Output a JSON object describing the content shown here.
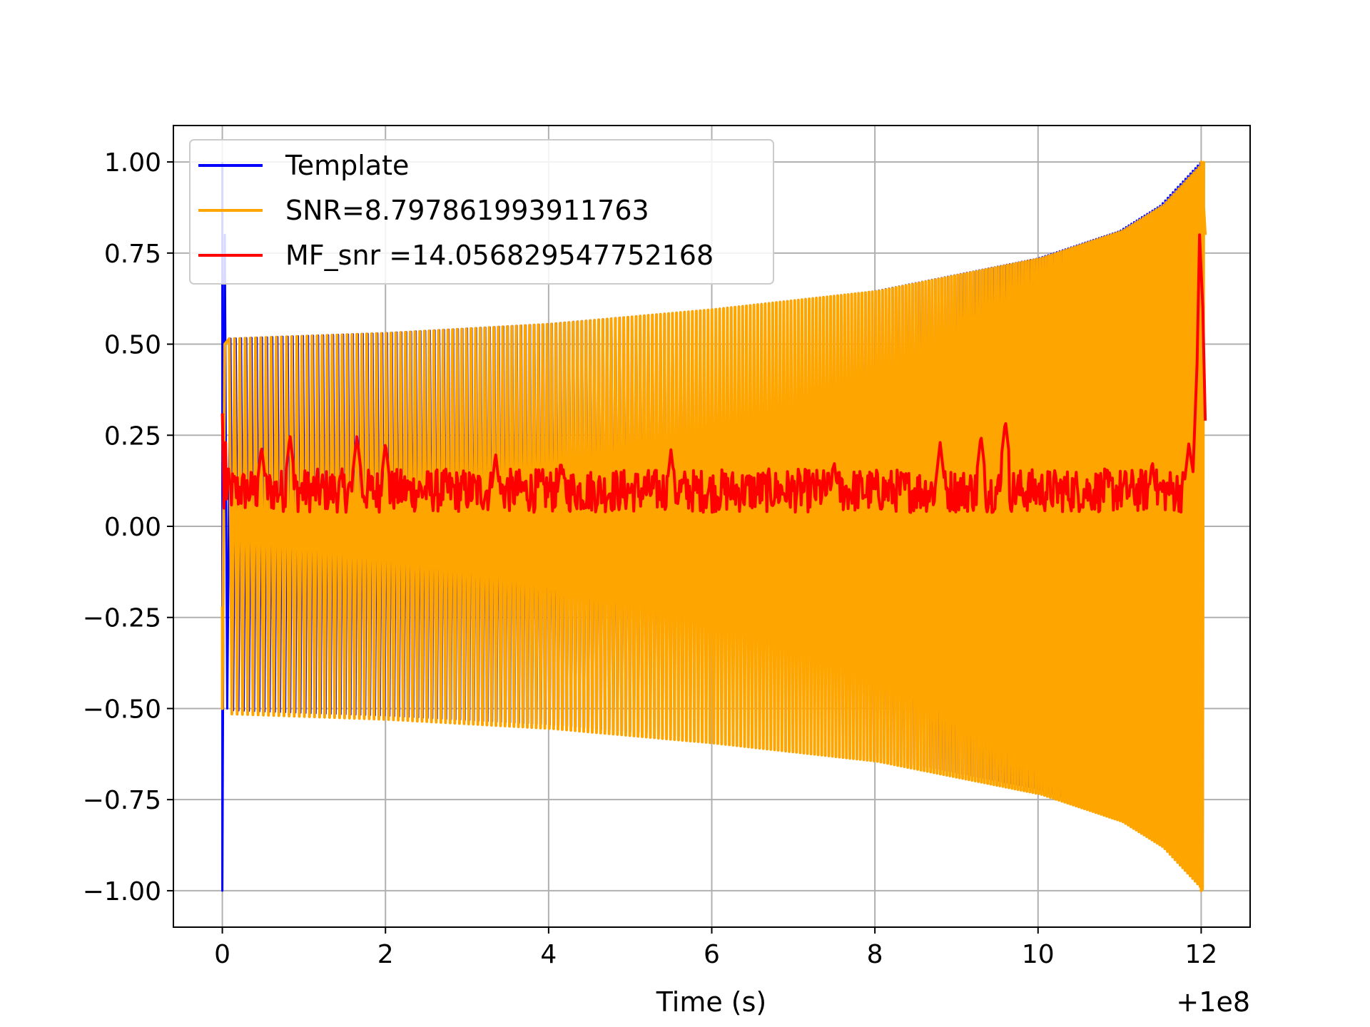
{
  "chart_data": {
    "type": "line",
    "title": "",
    "xlabel": "Time (s)",
    "ylabel": "",
    "x_offset_text": "+1e8",
    "xlim": [
      -0.6,
      12.6
    ],
    "ylim": [
      -1.1,
      1.1
    ],
    "xticks": [
      0,
      2,
      4,
      6,
      8,
      10,
      12
    ],
    "xtick_labels": [
      "0",
      "2",
      "4",
      "6",
      "8",
      "10",
      "12"
    ],
    "yticks": [
      1.0,
      0.75,
      0.5,
      0.25,
      0.0,
      -0.25,
      -0.5,
      -0.75,
      -1.0
    ],
    "ytick_labels": [
      "1.00",
      "0.75",
      "0.50",
      "0.25",
      "0.00",
      "−0.25",
      "−0.50",
      "−0.75",
      "−1.00"
    ],
    "grid": true,
    "legend_position": "upper-left",
    "series": [
      {
        "name": "Template",
        "color": "#0000ff",
        "kind": "oscillation",
        "x_start": 0.0,
        "x_end": 12.0,
        "spike_x": 0.0,
        "envelope": [
          [
            0.1,
            0.515
          ],
          [
            2,
            0.53
          ],
          [
            4,
            0.555
          ],
          [
            6,
            0.595
          ],
          [
            8,
            0.645
          ],
          [
            10,
            0.735
          ],
          [
            11,
            0.81
          ],
          [
            11.5,
            0.88
          ],
          [
            12,
            1.0
          ]
        ]
      },
      {
        "name": "SNR=8.797861993911763",
        "color": "#ffa500",
        "kind": "oscillation",
        "x_start": 0.0,
        "x_end": 12.05,
        "envelope": [
          [
            0.1,
            0.515
          ],
          [
            2,
            0.53
          ],
          [
            4,
            0.555
          ],
          [
            6,
            0.595
          ],
          [
            8,
            0.645
          ],
          [
            10,
            0.735
          ],
          [
            11,
            0.81
          ],
          [
            11.5,
            0.88
          ],
          [
            12,
            1.0
          ]
        ]
      },
      {
        "name": "MF_snr =14.056829547752168",
        "color": "#ff0000",
        "kind": "noise",
        "x_start": 0.0,
        "x_end": 12.05,
        "baseline": 0.08,
        "peaks": [
          [
            0,
            0.31
          ],
          [
            0.48,
            0.22
          ],
          [
            0.83,
            0.25
          ],
          [
            1.65,
            0.25
          ],
          [
            2.0,
            0.23
          ],
          [
            3.35,
            0.2
          ],
          [
            4.15,
            0.18
          ],
          [
            5.5,
            0.21
          ],
          [
            7.5,
            0.18
          ],
          [
            8.8,
            0.23
          ],
          [
            9.3,
            0.25
          ],
          [
            9.6,
            0.29
          ],
          [
            11.4,
            0.18
          ],
          [
            11.85,
            0.23
          ],
          [
            11.95,
            0.8
          ]
        ]
      }
    ]
  }
}
